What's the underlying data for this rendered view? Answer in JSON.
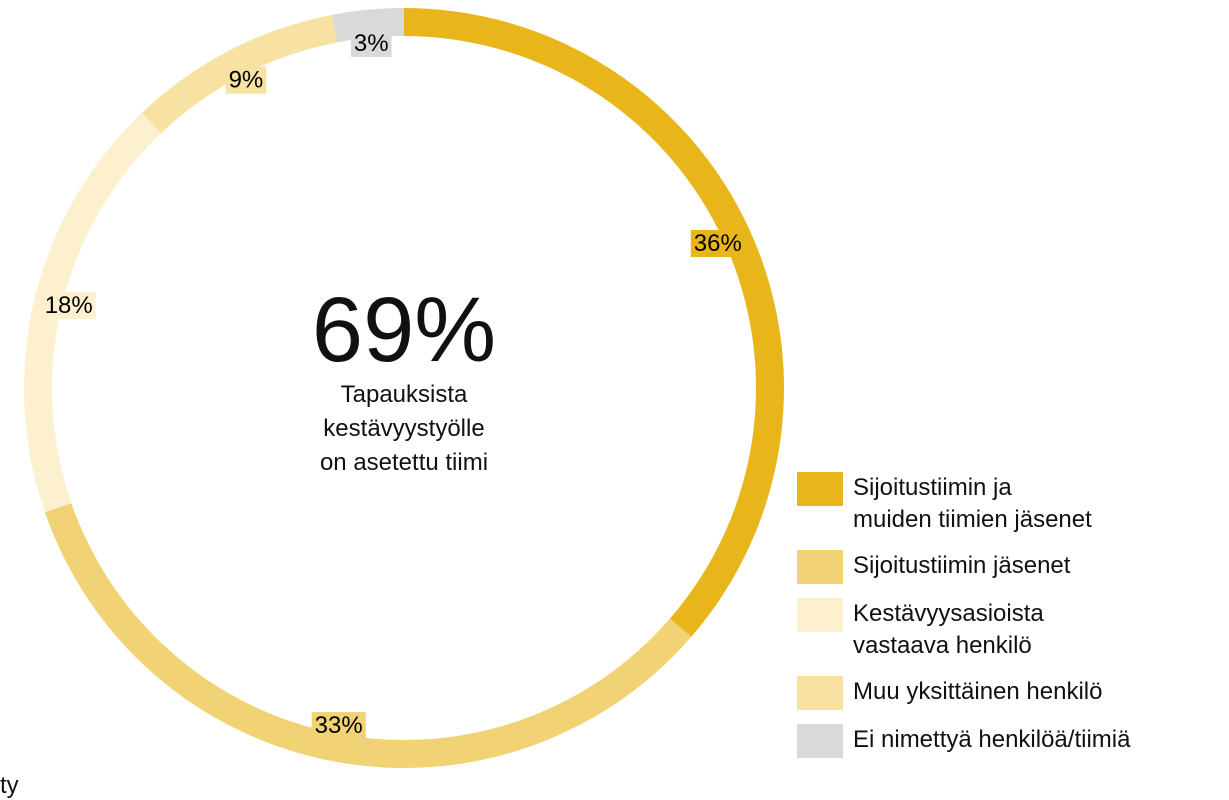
{
  "chart_data": {
    "type": "donut",
    "center_value": "69%",
    "center_text": "Tapauksista\nkestävyystyölle\non asetettu tiimi",
    "series": [
      {
        "name": "Sijoitustiimin ja\nmuiden tiimien jäsenet",
        "color": "#e8b61b",
        "value": 36,
        "value_label": "36%"
      },
      {
        "name": "Sijoitustiimin jäsenet",
        "color": "#f1d275",
        "value": 33,
        "value_label": "33%"
      },
      {
        "name": "Kestävyysasioista\nvastaava henkilö",
        "color": "#fcf0cf",
        "value": 18,
        "value_label": "18%"
      },
      {
        "name": "Muu yksittäinen henkilö",
        "color": "#f7e2a3",
        "value": 9,
        "value_label": "9%"
      },
      {
        "name": "Ei nimettyä henkilöä/tiimiä",
        "color": "#d9d9d9",
        "value": 3,
        "value_label": "3%"
      }
    ],
    "footnote": "ty"
  }
}
